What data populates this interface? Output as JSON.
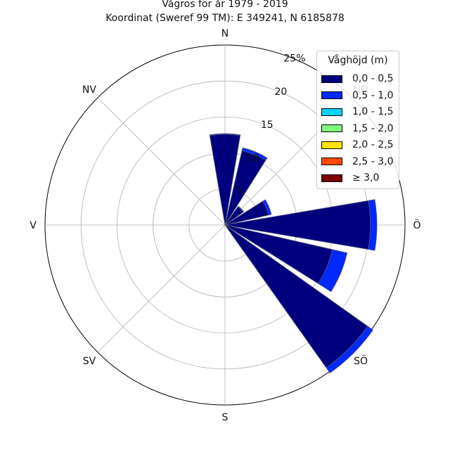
{
  "title": {
    "line1": "Vågros för år 1979 - 2019",
    "line2": "Koordinat (Sweref 99 TM): E 349241, N 6185878"
  },
  "chart_data": {
    "type": "polar-stacked-bar",
    "direction_labels": [
      "N",
      "NO",
      "Ö",
      "SÖ",
      "S",
      "SV",
      "V",
      "NV"
    ],
    "radial_ticks": [
      "5",
      "10",
      "15",
      "20",
      "25%"
    ],
    "rmax": 25,
    "grid": true,
    "legend": {
      "title": "Våghöjd (m)",
      "placement": "top-right",
      "items": [
        {
          "label": "0,0 - 0,5",
          "color": "#00007f"
        },
        {
          "label": "0,5 - 1,0",
          "color": "#0029ff"
        },
        {
          "label": "1,0 - 1,5",
          "color": "#00d4ff"
        },
        {
          "label": "1,5 - 2,0",
          "color": "#7dff7a"
        },
        {
          "label": "2,0 - 2,5",
          "color": "#ffe500"
        },
        {
          "label": "2,5 - 3,0",
          "color": "#ff4a00"
        },
        {
          "label": "≥ 3,0",
          "color": "#7f0000"
        }
      ]
    },
    "bin_width_deg": 22.5,
    "sectors": [
      {
        "direction_deg": 0,
        "values": [
          12.6,
          0.1,
          0,
          0,
          0,
          0,
          0
        ]
      },
      {
        "direction_deg": 22.5,
        "values": [
          10.6,
          0.4,
          0,
          0,
          0,
          0,
          0
        ]
      },
      {
        "direction_deg": 45,
        "values": [
          3.1,
          0.1,
          0,
          0,
          0,
          0,
          0
        ]
      },
      {
        "direction_deg": 67.5,
        "values": [
          6.2,
          0.4,
          0,
          0,
          0,
          0,
          0
        ]
      },
      {
        "direction_deg": 90,
        "values": [
          20.2,
          0.9,
          0,
          0,
          0,
          0,
          0
        ]
      },
      {
        "direction_deg": 112.5,
        "values": [
          15.3,
          2.1,
          0,
          0,
          0,
          0,
          0
        ]
      },
      {
        "direction_deg": 135,
        "values": [
          24.3,
          0.9,
          0,
          0,
          0,
          0,
          0
        ]
      }
    ]
  }
}
